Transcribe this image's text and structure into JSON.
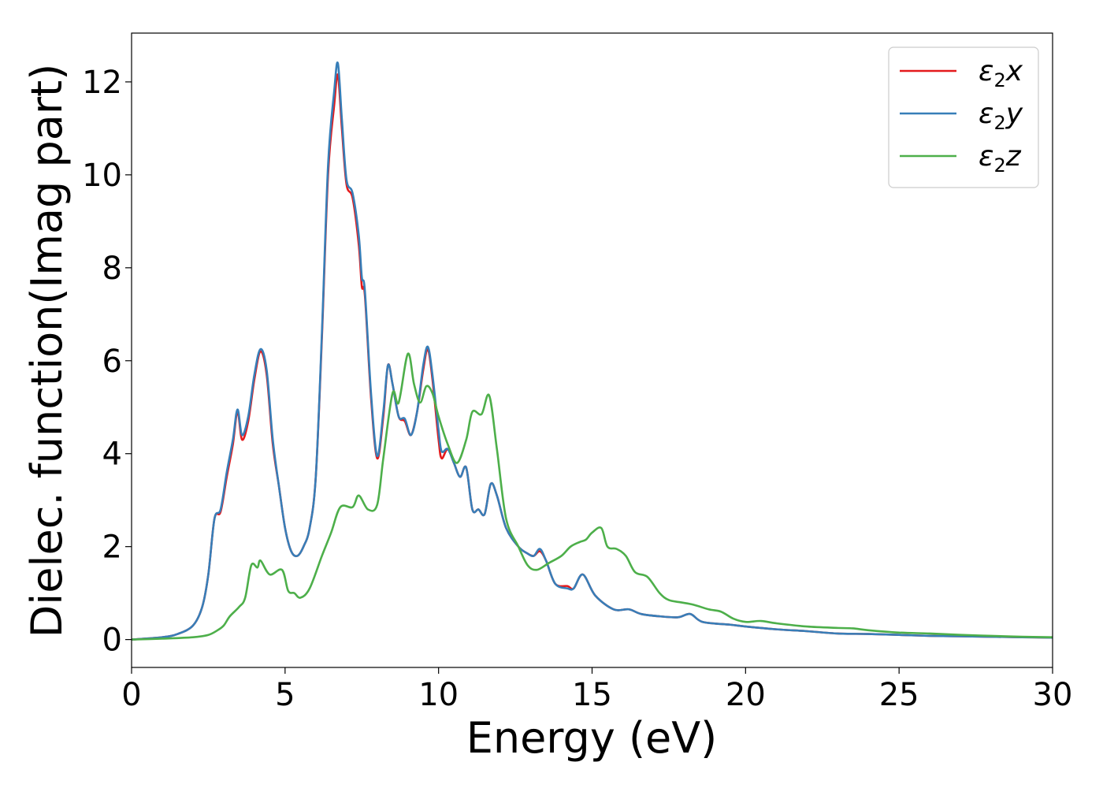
{
  "chart_data": {
    "type": "line",
    "xlabel": "Energy (eV)",
    "ylabel": "Dielec. function(Imag part)",
    "xlim": [
      0,
      30
    ],
    "ylim": [
      -0.6,
      13.05
    ],
    "xticks": [
      0,
      5,
      10,
      15,
      20,
      25,
      30
    ],
    "yticks": [
      0,
      2,
      4,
      6,
      8,
      10,
      12
    ],
    "grid": false,
    "legend_position": "top-right",
    "series": [
      {
        "name": "ε2x",
        "name_base": "ε",
        "name_sub": "2",
        "name_var": "x",
        "color": "#e41a1c",
        "points": [
          [
            0,
            0
          ],
          [
            1,
            0.05
          ],
          [
            1.5,
            0.12
          ],
          [
            2,
            0.3
          ],
          [
            2.3,
            0.7
          ],
          [
            2.5,
            1.4
          ],
          [
            2.7,
            2.6
          ],
          [
            2.9,
            2.75
          ],
          [
            3.1,
            3.5
          ],
          [
            3.3,
            4.2
          ],
          [
            3.45,
            4.9
          ],
          [
            3.6,
            4.3
          ],
          [
            3.8,
            4.7
          ],
          [
            4.0,
            5.6
          ],
          [
            4.2,
            6.2
          ],
          [
            4.4,
            5.7
          ],
          [
            4.6,
            4.2
          ],
          [
            4.8,
            3.3
          ],
          [
            5.0,
            2.4
          ],
          [
            5.2,
            1.9
          ],
          [
            5.4,
            1.8
          ],
          [
            5.6,
            2.0
          ],
          [
            5.8,
            2.4
          ],
          [
            6.0,
            3.5
          ],
          [
            6.2,
            6.5
          ],
          [
            6.4,
            10.0
          ],
          [
            6.6,
            11.5
          ],
          [
            6.72,
            12.15
          ],
          [
            6.85,
            11.0
          ],
          [
            7.0,
            9.8
          ],
          [
            7.2,
            9.5
          ],
          [
            7.4,
            8.5
          ],
          [
            7.5,
            7.6
          ],
          [
            7.6,
            7.4
          ],
          [
            7.8,
            5.2
          ],
          [
            8.0,
            3.9
          ],
          [
            8.2,
            4.8
          ],
          [
            8.35,
            5.9
          ],
          [
            8.5,
            5.5
          ],
          [
            8.7,
            4.8
          ],
          [
            8.9,
            4.7
          ],
          [
            9.1,
            4.4
          ],
          [
            9.3,
            4.9
          ],
          [
            9.5,
            5.8
          ],
          [
            9.65,
            6.25
          ],
          [
            9.8,
            5.6
          ],
          [
            10.0,
            4.3
          ],
          [
            10.1,
            3.9
          ],
          [
            10.3,
            4.1
          ],
          [
            10.5,
            3.8
          ],
          [
            10.7,
            3.5
          ],
          [
            10.9,
            3.7
          ],
          [
            11.1,
            2.8
          ],
          [
            11.3,
            2.8
          ],
          [
            11.5,
            2.7
          ],
          [
            11.7,
            3.35
          ],
          [
            11.9,
            3.1
          ],
          [
            12.2,
            2.4
          ],
          [
            12.6,
            2.0
          ],
          [
            12.9,
            1.85
          ],
          [
            13.1,
            1.8
          ],
          [
            13.3,
            1.9
          ],
          [
            13.5,
            1.7
          ],
          [
            13.8,
            1.2
          ],
          [
            14.2,
            1.15
          ],
          [
            14.4,
            1.1
          ],
          [
            14.7,
            1.4
          ],
          [
            15.1,
            0.95
          ],
          [
            15.7,
            0.65
          ],
          [
            16.2,
            0.65
          ],
          [
            16.6,
            0.55
          ],
          [
            17.2,
            0.5
          ],
          [
            17.8,
            0.48
          ],
          [
            18.2,
            0.55
          ],
          [
            18.6,
            0.38
          ],
          [
            19.5,
            0.32
          ],
          [
            20,
            0.28
          ],
          [
            21,
            0.22
          ],
          [
            22,
            0.18
          ],
          [
            23,
            0.13
          ],
          [
            24,
            0.12
          ],
          [
            25,
            0.1
          ],
          [
            26,
            0.08
          ],
          [
            27,
            0.07
          ],
          [
            28,
            0.06
          ],
          [
            29,
            0.05
          ],
          [
            30,
            0.04
          ]
        ]
      },
      {
        "name": "ε2y",
        "name_base": "ε",
        "name_sub": "2",
        "name_var": "y",
        "color": "#377eb8",
        "points": [
          [
            0,
            0
          ],
          [
            1,
            0.05
          ],
          [
            1.5,
            0.12
          ],
          [
            2,
            0.3
          ],
          [
            2.3,
            0.7
          ],
          [
            2.5,
            1.4
          ],
          [
            2.7,
            2.6
          ],
          [
            2.9,
            2.8
          ],
          [
            3.1,
            3.6
          ],
          [
            3.3,
            4.3
          ],
          [
            3.45,
            4.95
          ],
          [
            3.6,
            4.4
          ],
          [
            3.8,
            4.8
          ],
          [
            4.0,
            5.7
          ],
          [
            4.2,
            6.25
          ],
          [
            4.4,
            5.8
          ],
          [
            4.6,
            4.3
          ],
          [
            4.8,
            3.3
          ],
          [
            5.0,
            2.4
          ],
          [
            5.2,
            1.9
          ],
          [
            5.4,
            1.8
          ],
          [
            5.6,
            2.0
          ],
          [
            5.8,
            2.4
          ],
          [
            6.0,
            3.5
          ],
          [
            6.2,
            6.6
          ],
          [
            6.4,
            10.2
          ],
          [
            6.6,
            11.8
          ],
          [
            6.72,
            12.4
          ],
          [
            6.85,
            11.2
          ],
          [
            7.0,
            9.9
          ],
          [
            7.2,
            9.6
          ],
          [
            7.4,
            8.7
          ],
          [
            7.5,
            7.8
          ],
          [
            7.6,
            7.5
          ],
          [
            7.8,
            5.3
          ],
          [
            8.0,
            3.95
          ],
          [
            8.2,
            4.9
          ],
          [
            8.35,
            5.9
          ],
          [
            8.5,
            5.5
          ],
          [
            8.7,
            4.8
          ],
          [
            8.9,
            4.75
          ],
          [
            9.1,
            4.4
          ],
          [
            9.3,
            4.9
          ],
          [
            9.5,
            5.9
          ],
          [
            9.65,
            6.3
          ],
          [
            9.8,
            5.7
          ],
          [
            10.0,
            4.5
          ],
          [
            10.1,
            4.05
          ],
          [
            10.3,
            4.1
          ],
          [
            10.5,
            3.8
          ],
          [
            10.7,
            3.5
          ],
          [
            10.9,
            3.7
          ],
          [
            11.1,
            2.8
          ],
          [
            11.3,
            2.8
          ],
          [
            11.5,
            2.7
          ],
          [
            11.7,
            3.35
          ],
          [
            11.9,
            3.1
          ],
          [
            12.2,
            2.4
          ],
          [
            12.6,
            2.0
          ],
          [
            12.9,
            1.85
          ],
          [
            13.1,
            1.8
          ],
          [
            13.3,
            1.95
          ],
          [
            13.5,
            1.7
          ],
          [
            13.8,
            1.2
          ],
          [
            14.2,
            1.1
          ],
          [
            14.4,
            1.1
          ],
          [
            14.7,
            1.4
          ],
          [
            15.1,
            0.95
          ],
          [
            15.7,
            0.65
          ],
          [
            16.2,
            0.65
          ],
          [
            16.6,
            0.55
          ],
          [
            17.2,
            0.5
          ],
          [
            17.8,
            0.48
          ],
          [
            18.2,
            0.55
          ],
          [
            18.6,
            0.38
          ],
          [
            19.5,
            0.32
          ],
          [
            20,
            0.28
          ],
          [
            21,
            0.22
          ],
          [
            22,
            0.18
          ],
          [
            23,
            0.13
          ],
          [
            24,
            0.12
          ],
          [
            25,
            0.1
          ],
          [
            26,
            0.08
          ],
          [
            27,
            0.07
          ],
          [
            28,
            0.06
          ],
          [
            29,
            0.05
          ],
          [
            30,
            0.04
          ]
        ]
      },
      {
        "name": "ε2z",
        "name_base": "ε",
        "name_sub": "2",
        "name_var": "z",
        "color": "#4daf4a",
        "points": [
          [
            0,
            0
          ],
          [
            1,
            0.02
          ],
          [
            2,
            0.05
          ],
          [
            2.5,
            0.1
          ],
          [
            2.8,
            0.2
          ],
          [
            3.0,
            0.3
          ],
          [
            3.2,
            0.5
          ],
          [
            3.5,
            0.7
          ],
          [
            3.7,
            0.9
          ],
          [
            3.9,
            1.6
          ],
          [
            4.1,
            1.55
          ],
          [
            4.2,
            1.7
          ],
          [
            4.5,
            1.4
          ],
          [
            4.9,
            1.5
          ],
          [
            5.1,
            1.05
          ],
          [
            5.3,
            1.0
          ],
          [
            5.5,
            0.9
          ],
          [
            5.8,
            1.1
          ],
          [
            6.2,
            1.8
          ],
          [
            6.5,
            2.3
          ],
          [
            6.8,
            2.85
          ],
          [
            7.2,
            2.85
          ],
          [
            7.4,
            3.1
          ],
          [
            7.7,
            2.8
          ],
          [
            8.0,
            2.9
          ],
          [
            8.2,
            3.9
          ],
          [
            8.5,
            5.3
          ],
          [
            8.7,
            5.1
          ],
          [
            9.0,
            6.15
          ],
          [
            9.2,
            5.5
          ],
          [
            9.4,
            5.1
          ],
          [
            9.6,
            5.45
          ],
          [
            9.8,
            5.3
          ],
          [
            10.0,
            4.8
          ],
          [
            10.3,
            4.2
          ],
          [
            10.6,
            3.8
          ],
          [
            10.9,
            4.3
          ],
          [
            11.1,
            4.9
          ],
          [
            11.4,
            4.85
          ],
          [
            11.65,
            5.25
          ],
          [
            11.9,
            4.1
          ],
          [
            12.2,
            2.6
          ],
          [
            12.6,
            2.0
          ],
          [
            12.9,
            1.6
          ],
          [
            13.2,
            1.5
          ],
          [
            13.6,
            1.65
          ],
          [
            14.0,
            1.8
          ],
          [
            14.3,
            2.0
          ],
          [
            14.6,
            2.1
          ],
          [
            14.8,
            2.15
          ],
          [
            15.0,
            2.3
          ],
          [
            15.3,
            2.4
          ],
          [
            15.5,
            2.0
          ],
          [
            15.8,
            1.95
          ],
          [
            16.1,
            1.8
          ],
          [
            16.4,
            1.45
          ],
          [
            16.8,
            1.35
          ],
          [
            17.2,
            1.0
          ],
          [
            17.5,
            0.85
          ],
          [
            17.9,
            0.8
          ],
          [
            18.3,
            0.75
          ],
          [
            18.8,
            0.65
          ],
          [
            19.2,
            0.6
          ],
          [
            19.6,
            0.45
          ],
          [
            20,
            0.38
          ],
          [
            20.5,
            0.4
          ],
          [
            21,
            0.35
          ],
          [
            22,
            0.28
          ],
          [
            23,
            0.25
          ],
          [
            23.5,
            0.24
          ],
          [
            24,
            0.2
          ],
          [
            25,
            0.15
          ],
          [
            26,
            0.13
          ],
          [
            27,
            0.1
          ],
          [
            28,
            0.08
          ],
          [
            29,
            0.06
          ],
          [
            30,
            0.05
          ]
        ]
      }
    ]
  }
}
